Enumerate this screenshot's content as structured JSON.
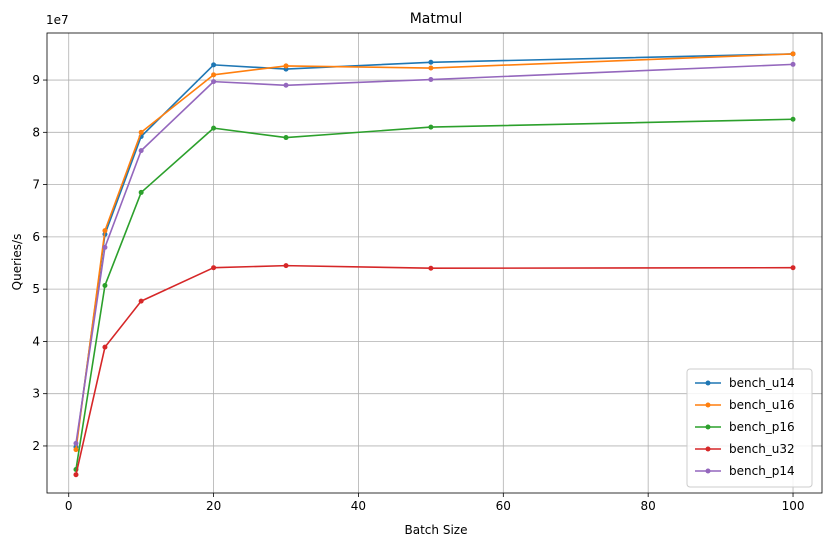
{
  "chart_data": {
    "type": "line",
    "title": "Matmul",
    "xlabel": "Batch Size",
    "ylabel": "Queries/s",
    "y_offset_label": "1e7",
    "x": [
      1,
      5,
      10,
      20,
      30,
      50,
      100
    ],
    "xlim": [
      -3,
      104
    ],
    "ylim": [
      1.1,
      9.9
    ],
    "x_ticks": [
      0,
      20,
      40,
      60,
      80,
      100
    ],
    "y_ticks": [
      2,
      3,
      4,
      5,
      6,
      7,
      8,
      9
    ],
    "grid": true,
    "legend_position": "lower-right",
    "series": [
      {
        "name": "bench_u14",
        "color": "#1f77b4",
        "values": [
          1.98,
          6.05,
          7.92,
          9.29,
          9.21,
          9.34,
          9.5
        ]
      },
      {
        "name": "bench_u16",
        "color": "#ff7f0e",
        "values": [
          1.93,
          6.12,
          8.0,
          9.1,
          9.27,
          9.23,
          9.5
        ]
      },
      {
        "name": "bench_p16",
        "color": "#2ca02c",
        "values": [
          1.55,
          5.07,
          6.85,
          8.08,
          7.9,
          8.1,
          8.25
        ]
      },
      {
        "name": "bench_u32",
        "color": "#d62728",
        "values": [
          1.45,
          3.89,
          4.77,
          5.41,
          5.45,
          5.4,
          5.41
        ]
      },
      {
        "name": "bench_p14",
        "color": "#9467bd",
        "values": [
          2.05,
          5.8,
          7.65,
          8.97,
          8.9,
          9.01,
          9.3
        ]
      }
    ]
  }
}
